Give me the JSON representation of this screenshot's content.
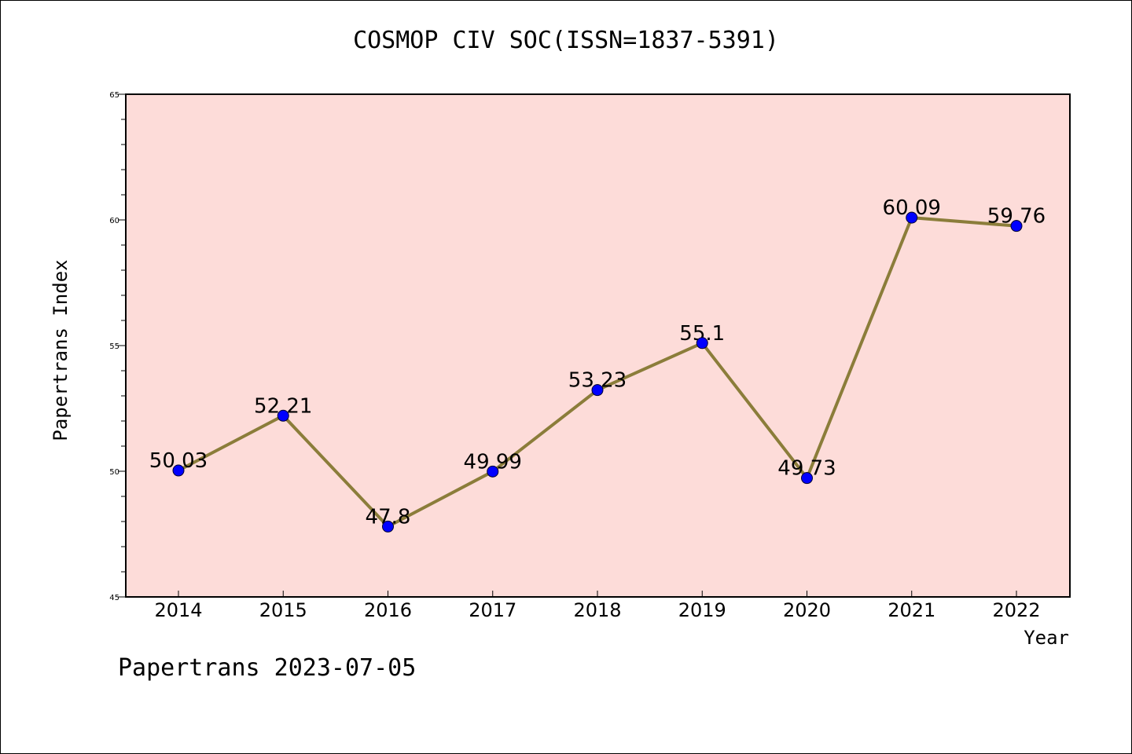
{
  "chart_data": {
    "type": "line",
    "title": "COSMOP CIV SOC(ISSN=1837-5391)",
    "xlabel": "Year",
    "ylabel": "Papertrans Index",
    "categories": [
      "2014",
      "2015",
      "2016",
      "2017",
      "2018",
      "2019",
      "2020",
      "2021",
      "2022"
    ],
    "values": [
      50.03,
      52.21,
      47.8,
      49.99,
      53.23,
      55.1,
      49.73,
      60.09,
      59.76
    ],
    "data_labels": [
      "50.03",
      "52.21",
      "47.8",
      "49.99",
      "53.23",
      "55.1",
      "49.73",
      "60.09",
      "59.76"
    ],
    "ylim": [
      45,
      65
    ],
    "yticks": [
      "45",
      "50",
      "55",
      "60",
      "65"
    ],
    "grid": false,
    "colors": {
      "plot_background": "#fddcd9",
      "line": "#8b7d3a",
      "marker": "#0000ff"
    }
  },
  "footer": "Papertrans 2023-07-05"
}
